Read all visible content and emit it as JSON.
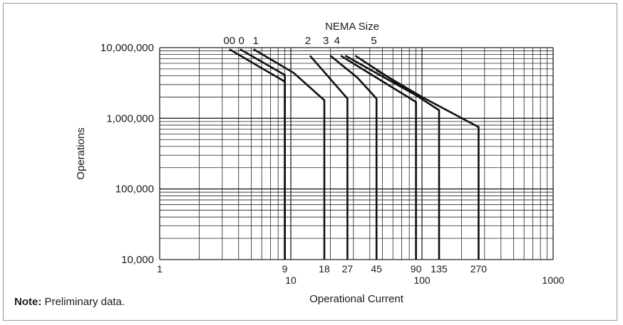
{
  "chart_data": {
    "type": "line",
    "title": "NEMA Size",
    "xlabel": "Operational Current",
    "ylabel": "Operations",
    "x_scale": "log",
    "y_scale": "log",
    "xlim": [
      1,
      1000
    ],
    "ylim": [
      10000,
      10000000
    ],
    "grid": true,
    "x_tick_labels": [
      {
        "value": 1,
        "label": "1",
        "row": 1
      },
      {
        "value": 9,
        "label": "9",
        "row": 1
      },
      {
        "value": 10,
        "label": "10",
        "row": 2
      },
      {
        "value": 18,
        "label": "18",
        "row": 1
      },
      {
        "value": 27,
        "label": "27",
        "row": 1
      },
      {
        "value": 45,
        "label": "45",
        "row": 1
      },
      {
        "value": 90,
        "label": "90",
        "row": 1
      },
      {
        "value": 100,
        "label": "100",
        "row": 2
      },
      {
        "value": 135,
        "label": "135",
        "row": 1
      },
      {
        "value": 270,
        "label": "270",
        "row": 1
      },
      {
        "value": 1000,
        "label": "1000",
        "row": 2
      }
    ],
    "y_tick_labels": [
      {
        "value": 10000,
        "label": "10,000"
      },
      {
        "value": 100000,
        "label": "100,000"
      },
      {
        "value": 1000000,
        "label": "1,000,000"
      },
      {
        "value": 10000000,
        "label": "10,000,000"
      }
    ],
    "series": [
      {
        "name": "00",
        "points": [
          [
            3.4,
            9500000
          ],
          [
            9,
            3300000
          ],
          [
            9,
            10000
          ]
        ]
      },
      {
        "name": "0",
        "points": [
          [
            4.1,
            9500000
          ],
          [
            9,
            4100000
          ],
          [
            9,
            10000
          ]
        ]
      },
      {
        "name": "1",
        "points": [
          [
            5.2,
            9500000
          ],
          [
            10.5,
            4400000
          ],
          [
            18,
            1800000
          ],
          [
            18,
            10000
          ]
        ]
      },
      {
        "name": "2",
        "points": [
          [
            14,
            7700000
          ],
          [
            27,
            1900000
          ],
          [
            27,
            10000
          ]
        ]
      },
      {
        "name": "3",
        "points": [
          [
            20,
            7700000
          ],
          [
            32,
            3800000
          ],
          [
            45,
            1900000
          ],
          [
            45,
            10000
          ]
        ]
      },
      {
        "name": "4",
        "points": [
          [
            24,
            7700000
          ],
          [
            90,
            1700000
          ],
          [
            90,
            10000
          ]
        ]
      },
      {
        "name": "",
        "points": [
          [
            26,
            7700000
          ],
          [
            95,
            2000000
          ]
        ]
      },
      {
        "name": "",
        "points": [
          [
            31,
            7700000
          ],
          [
            135,
            1300000
          ],
          [
            135,
            10000
          ]
        ]
      },
      {
        "name": "5",
        "points": [
          [
            45,
            4800000
          ],
          [
            100,
            2000000
          ],
          [
            270,
            750000
          ],
          [
            270,
            10000
          ]
        ]
      }
    ],
    "nema_labels": [
      {
        "label": "00",
        "x": 3.4
      },
      {
        "label": "0",
        "x": 4.2
      },
      {
        "label": "1",
        "x": 5.4
      },
      {
        "label": "2",
        "x": 13.5
      },
      {
        "label": "3",
        "x": 18.5
      },
      {
        "label": "4",
        "x": 22.5
      },
      {
        "label": "5",
        "x": 43
      }
    ]
  },
  "note": {
    "bold": "Note:",
    "text": " Preliminary data."
  }
}
